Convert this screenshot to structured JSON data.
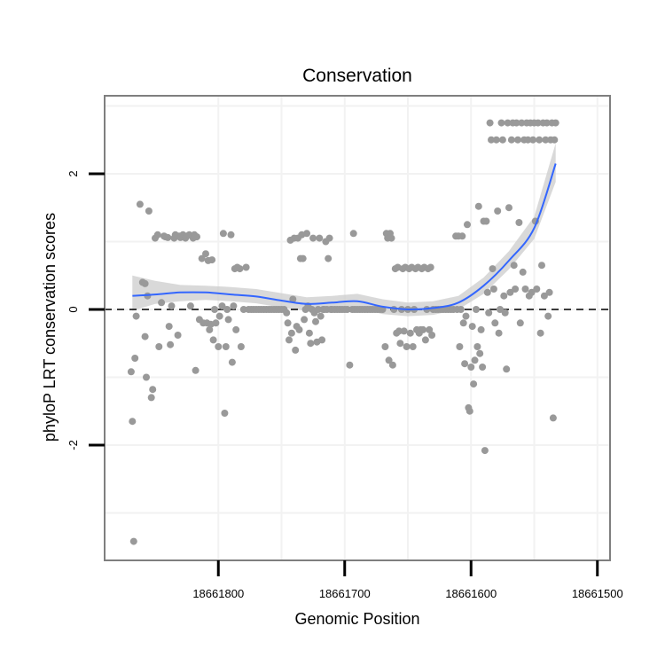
{
  "chart_data": {
    "type": "scatter",
    "title": "Conservation",
    "xlabel": "Genomic Position",
    "ylabel": "phyloP LRT conservation scores",
    "x_reversed": true,
    "xlim": [
      18661890,
      18661490
    ],
    "ylim": [
      -3.7,
      3.15
    ],
    "x_ticks": [
      18661800,
      18661700,
      18661600,
      18661500
    ],
    "x_tick_labels": [
      "18661800",
      "18661700",
      "18661600",
      "18661500"
    ],
    "y_ticks": [
      -2,
      0,
      2
    ],
    "y_tick_labels": [
      "-2",
      "0",
      "2"
    ],
    "grid": true,
    "reference_line": {
      "y": 0,
      "style": "dashed"
    },
    "colors": {
      "points": "#999999",
      "smooth": "#3366FF",
      "ribbon": "#CCCCCC",
      "grid": "#F2F2F2",
      "border": "#7F7F7F"
    },
    "points": [
      [
        18661867,
        -3.42
      ],
      [
        18661868,
        -1.65
      ],
      [
        18661869,
        -0.92
      ],
      [
        18661866,
        -0.72
      ],
      [
        18661865,
        -0.1
      ],
      [
        18661862,
        1.55
      ],
      [
        18661860,
        0.4
      ],
      [
        18661858,
        0.38
      ],
      [
        18661858,
        -0.4
      ],
      [
        18661857,
        -1.0
      ],
      [
        18661856,
        0.2
      ],
      [
        18661855,
        1.45
      ],
      [
        18661853,
        -1.3
      ],
      [
        18661852,
        -1.18
      ],
      [
        18661850,
        1.05
      ],
      [
        18661848,
        1.1
      ],
      [
        18661847,
        -0.55
      ],
      [
        18661845,
        0.1
      ],
      [
        18661843,
        1.08
      ],
      [
        18661842,
        1.07
      ],
      [
        18661840,
        1.06
      ],
      [
        18661839,
        -0.25
      ],
      [
        18661838,
        -0.52
      ],
      [
        18661837,
        0.05
      ],
      [
        18661835,
        1.05
      ],
      [
        18661834,
        1.1
      ],
      [
        18661832,
        -0.38
      ],
      [
        18661831,
        1.08
      ],
      [
        18661830,
        1.06
      ],
      [
        18661828,
        1.1
      ],
      [
        18661826,
        1.05
      ],
      [
        18661825,
        1.08
      ],
      [
        18661823,
        1.1
      ],
      [
        18661822,
        0.05
      ],
      [
        18661820,
        1.05
      ],
      [
        18661819,
        1.1
      ],
      [
        18661818,
        -0.9
      ],
      [
        18661817,
        1.07
      ],
      [
        18661815,
        -0.15
      ],
      [
        18661813,
        0.75
      ],
      [
        18661812,
        -0.2
      ],
      [
        18661810,
        0.82
      ],
      [
        18661809,
        -0.2
      ],
      [
        18661808,
        0.72
      ],
      [
        18661807,
        -0.3
      ],
      [
        18661806,
        -0.22
      ],
      [
        18661805,
        0.73
      ],
      [
        18661804,
        -0.45
      ],
      [
        18661803,
        0.0
      ],
      [
        18661802,
        -0.2
      ],
      [
        18661800,
        -0.55
      ],
      [
        18661799,
        -0.1
      ],
      [
        18661797,
        0.05
      ],
      [
        18661796,
        1.12
      ],
      [
        18661795,
        -1.53
      ],
      [
        18661794,
        -0.55
      ],
      [
        18661793,
        0.0
      ],
      [
        18661792,
        -0.15
      ],
      [
        18661790,
        1.1
      ],
      [
        18661789,
        -0.78
      ],
      [
        18661788,
        0.05
      ],
      [
        18661787,
        0.6
      ],
      [
        18661786,
        -0.3
      ],
      [
        18661785,
        0.62
      ],
      [
        18661783,
        0.6
      ],
      [
        18661782,
        -0.55
      ],
      [
        18661780,
        0.0
      ],
      [
        18661778,
        0.62
      ],
      [
        18661776,
        0.0
      ],
      [
        18661774,
        0.0
      ],
      [
        18661772,
        0.0
      ],
      [
        18661770,
        0.0
      ],
      [
        18661768,
        0.0
      ],
      [
        18661766,
        0.0
      ],
      [
        18661764,
        0.0
      ],
      [
        18661762,
        0.0
      ],
      [
        18661760,
        0.0
      ],
      [
        18661758,
        0.0
      ],
      [
        18661756,
        0.0
      ],
      [
        18661754,
        0.0
      ],
      [
        18661752,
        0.0
      ],
      [
        18661750,
        0.0
      ],
      [
        18661748,
        0.0
      ],
      [
        18661746,
        -0.05
      ],
      [
        18661745,
        -0.2
      ],
      [
        18661744,
        -0.45
      ],
      [
        18661743,
        1.02
      ],
      [
        18661742,
        -0.35
      ],
      [
        18661741,
        0.15
      ],
      [
        18661740,
        1.05
      ],
      [
        18661739,
        -0.6
      ],
      [
        18661738,
        -0.25
      ],
      [
        18661737,
        1.05
      ],
      [
        18661736,
        -0.3
      ],
      [
        18661735,
        0.75
      ],
      [
        18661734,
        1.1
      ],
      [
        18661733,
        0.75
      ],
      [
        18661732,
        -0.15
      ],
      [
        18661731,
        0.0
      ],
      [
        18661730,
        1.12
      ],
      [
        18661729,
        0.05
      ],
      [
        18661728,
        -0.35
      ],
      [
        18661727,
        -0.5
      ],
      [
        18661726,
        0.0
      ],
      [
        18661725,
        1.05
      ],
      [
        18661724,
        -0.05
      ],
      [
        18661723,
        -0.18
      ],
      [
        18661722,
        -0.48
      ],
      [
        18661721,
        0.0
      ],
      [
        18661720,
        1.05
      ],
      [
        18661719,
        -0.1
      ],
      [
        18661718,
        -0.45
      ],
      [
        18661717,
        0.0
      ],
      [
        18661716,
        0.0
      ],
      [
        18661715,
        1.0
      ],
      [
        18661714,
        0.0
      ],
      [
        18661713,
        0.75
      ],
      [
        18661712,
        1.05
      ],
      [
        18661711,
        0.0
      ],
      [
        18661710,
        0.0
      ],
      [
        18661708,
        0.0
      ],
      [
        18661706,
        0.0
      ],
      [
        18661704,
        0.0
      ],
      [
        18661702,
        0.0
      ],
      [
        18661700,
        0.0
      ],
      [
        18661698,
        0.0
      ],
      [
        18661696,
        -0.82
      ],
      [
        18661694,
        0.0
      ],
      [
        18661693,
        1.12
      ],
      [
        18661692,
        0.0
      ],
      [
        18661690,
        0.0
      ],
      [
        18661688,
        0.0
      ],
      [
        18661686,
        0.0
      ],
      [
        18661684,
        0.0
      ],
      [
        18661682,
        0.0
      ],
      [
        18661680,
        0.0
      ],
      [
        18661678,
        0.0
      ],
      [
        18661676,
        0.0
      ],
      [
        18661674,
        0.0
      ],
      [
        18661672,
        0.0
      ],
      [
        18661670,
        0.0
      ],
      [
        18661668,
        -0.55
      ],
      [
        18661667,
        1.12
      ],
      [
        18661666,
        1.05
      ],
      [
        18661665,
        -0.75
      ],
      [
        18661664,
        1.12
      ],
      [
        18661663,
        1.05
      ],
      [
        18661662,
        -0.82
      ],
      [
        18661661,
        0.0
      ],
      [
        18661660,
        0.6
      ],
      [
        18661659,
        -0.35
      ],
      [
        18661658,
        0.62
      ],
      [
        18661657,
        -0.32
      ],
      [
        18661656,
        -0.5
      ],
      [
        18661655,
        0.0
      ],
      [
        18661654,
        0.6
      ],
      [
        18661653,
        -0.32
      ],
      [
        18661652,
        0.62
      ],
      [
        18661651,
        -0.55
      ],
      [
        18661650,
        0.0
      ],
      [
        18661649,
        0.6
      ],
      [
        18661648,
        -0.35
      ],
      [
        18661647,
        0.62
      ],
      [
        18661646,
        -0.55
      ],
      [
        18661645,
        0.0
      ],
      [
        18661644,
        0.6
      ],
      [
        18661643,
        -0.3
      ],
      [
        18661642,
        0.62
      ],
      [
        18661641,
        -0.35
      ],
      [
        18661640,
        -0.3
      ],
      [
        18661639,
        0.6
      ],
      [
        18661638,
        -0.3
      ],
      [
        18661637,
        0.62
      ],
      [
        18661636,
        -0.45
      ],
      [
        18661635,
        0.0
      ],
      [
        18661634,
        0.6
      ],
      [
        18661633,
        -0.3
      ],
      [
        18661632,
        0.62
      ],
      [
        18661631,
        -0.38
      ],
      [
        18661630,
        0.0
      ],
      [
        18661628,
        0.0
      ],
      [
        18661626,
        0.0
      ],
      [
        18661624,
        0.0
      ],
      [
        18661622,
        0.0
      ],
      [
        18661620,
        0.0
      ],
      [
        18661618,
        0.0
      ],
      [
        18661616,
        0.0
      ],
      [
        18661614,
        0.0
      ],
      [
        18661612,
        1.08
      ],
      [
        18661611,
        0.0
      ],
      [
        18661610,
        1.08
      ],
      [
        18661609,
        -0.55
      ],
      [
        18661608,
        0.0
      ],
      [
        18661607,
        1.08
      ],
      [
        18661606,
        -0.2
      ],
      [
        18661605,
        -0.8
      ],
      [
        18661604,
        -0.1
      ],
      [
        18661603,
        1.25
      ],
      [
        18661602,
        -1.45
      ],
      [
        18661601,
        -1.5
      ],
      [
        18661600,
        -0.85
      ],
      [
        18661599,
        -0.25
      ],
      [
        18661598,
        -1.1
      ],
      [
        18661597,
        -0.75
      ],
      [
        18661596,
        0.0
      ],
      [
        18661595,
        -0.55
      ],
      [
        18661594,
        1.52
      ],
      [
        18661593,
        -0.65
      ],
      [
        18661592,
        -0.3
      ],
      [
        18661591,
        -0.85
      ],
      [
        18661590,
        1.3
      ],
      [
        18661589,
        -2.08
      ],
      [
        18661588,
        1.3
      ],
      [
        18661587,
        0.25
      ],
      [
        18661586,
        -0.05
      ],
      [
        18661585,
        2.75
      ],
      [
        18661584,
        2.5
      ],
      [
        18661583,
        0.6
      ],
      [
        18661582,
        0.3
      ],
      [
        18661581,
        -0.2
      ],
      [
        18661580,
        2.5
      ],
      [
        18661579,
        1.45
      ],
      [
        18661578,
        -0.35
      ],
      [
        18661577,
        0.0
      ],
      [
        18661576,
        2.75
      ],
      [
        18661575,
        2.5
      ],
      [
        18661574,
        0.2
      ],
      [
        18661573,
        -0.05
      ],
      [
        18661572,
        -0.88
      ],
      [
        18661571,
        2.75
      ],
      [
        18661570,
        1.5
      ],
      [
        18661569,
        0.25
      ],
      [
        18661568,
        2.5
      ],
      [
        18661567,
        2.75
      ],
      [
        18661566,
        0.65
      ],
      [
        18661565,
        0.3
      ],
      [
        18661564,
        2.75
      ],
      [
        18661563,
        2.5
      ],
      [
        18661562,
        1.28
      ],
      [
        18661561,
        -0.2
      ],
      [
        18661560,
        2.75
      ],
      [
        18661559,
        0.55
      ],
      [
        18661558,
        2.5
      ],
      [
        18661557,
        0.3
      ],
      [
        18661556,
        2.75
      ],
      [
        18661555,
        2.5
      ],
      [
        18661554,
        0.2
      ],
      [
        18661553,
        2.75
      ],
      [
        18661552,
        0.25
      ],
      [
        18661551,
        2.5
      ],
      [
        18661550,
        2.75
      ],
      [
        18661549,
        1.3
      ],
      [
        18661548,
        0.3
      ],
      [
        18661547,
        2.75
      ],
      [
        18661546,
        2.5
      ],
      [
        18661545,
        -0.35
      ],
      [
        18661544,
        0.65
      ],
      [
        18661543,
        2.75
      ],
      [
        18661542,
        0.2
      ],
      [
        18661541,
        2.5
      ],
      [
        18661540,
        2.75
      ],
      [
        18661539,
        -0.1
      ],
      [
        18661538,
        0.25
      ],
      [
        18661537,
        2.5
      ],
      [
        18661536,
        2.75
      ],
      [
        18661535,
        -1.6
      ],
      [
        18661534,
        2.5
      ],
      [
        18661533,
        2.75
      ]
    ],
    "smooth": [
      {
        "x": 18661868,
        "y": 0.2,
        "lo": -0.02,
        "hi": 0.5
      },
      {
        "x": 18661850,
        "y": 0.22,
        "lo": 0.08,
        "hi": 0.42
      },
      {
        "x": 18661830,
        "y": 0.25,
        "lo": 0.12,
        "hi": 0.36
      },
      {
        "x": 18661810,
        "y": 0.25,
        "lo": 0.14,
        "hi": 0.35
      },
      {
        "x": 18661790,
        "y": 0.22,
        "lo": 0.12,
        "hi": 0.33
      },
      {
        "x": 18661770,
        "y": 0.19,
        "lo": 0.09,
        "hi": 0.3
      },
      {
        "x": 18661750,
        "y": 0.13,
        "lo": 0.03,
        "hi": 0.24
      },
      {
        "x": 18661730,
        "y": 0.08,
        "lo": -0.02,
        "hi": 0.18
      },
      {
        "x": 18661710,
        "y": 0.1,
        "lo": 0.0,
        "hi": 0.2
      },
      {
        "x": 18661690,
        "y": 0.12,
        "lo": 0.02,
        "hi": 0.23
      },
      {
        "x": 18661670,
        "y": 0.04,
        "lo": -0.07,
        "hi": 0.15
      },
      {
        "x": 18661650,
        "y": 0.0,
        "lo": -0.1,
        "hi": 0.1
      },
      {
        "x": 18661630,
        "y": 0.02,
        "lo": -0.08,
        "hi": 0.12
      },
      {
        "x": 18661610,
        "y": 0.1,
        "lo": 0.0,
        "hi": 0.2
      },
      {
        "x": 18661590,
        "y": 0.35,
        "lo": 0.23,
        "hi": 0.47
      },
      {
        "x": 18661570,
        "y": 0.72,
        "lo": 0.59,
        "hi": 0.86
      },
      {
        "x": 18661550,
        "y": 1.2,
        "lo": 1.04,
        "hi": 1.37
      },
      {
        "x": 18661533,
        "y": 2.15,
        "lo": 1.88,
        "hi": 2.45
      }
    ]
  }
}
